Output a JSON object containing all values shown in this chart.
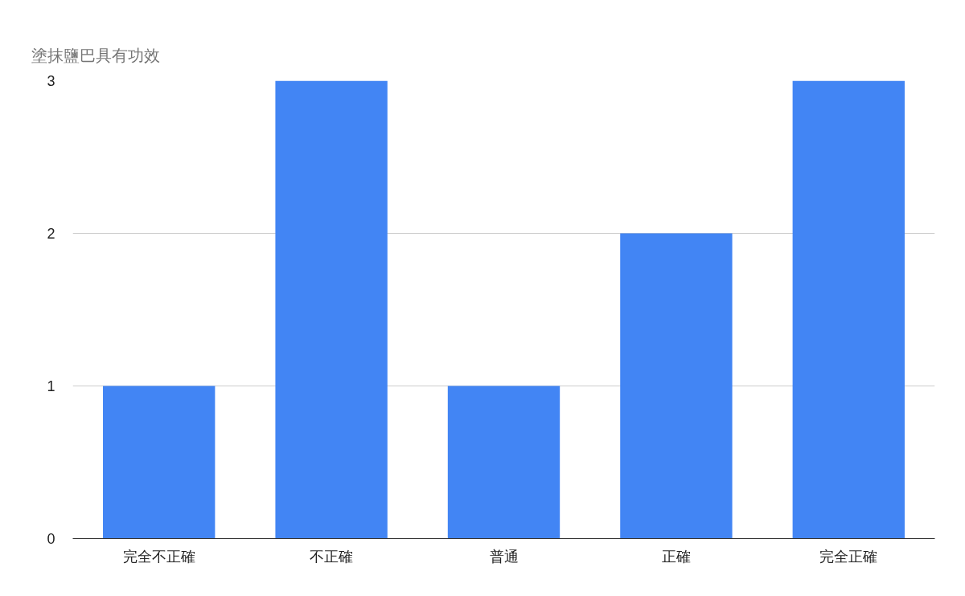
{
  "chart_data": {
    "type": "bar",
    "title": "塗抹鹽巴具有功效",
    "categories": [
      "完全不正確",
      "不正確",
      "普通",
      "正確",
      "完全正確"
    ],
    "values": [
      1,
      3,
      1,
      2,
      3
    ],
    "color": "#4285f4",
    "ylim": [
      0,
      3
    ],
    "yticks": [
      0,
      1,
      2,
      3
    ],
    "grid": "y"
  }
}
